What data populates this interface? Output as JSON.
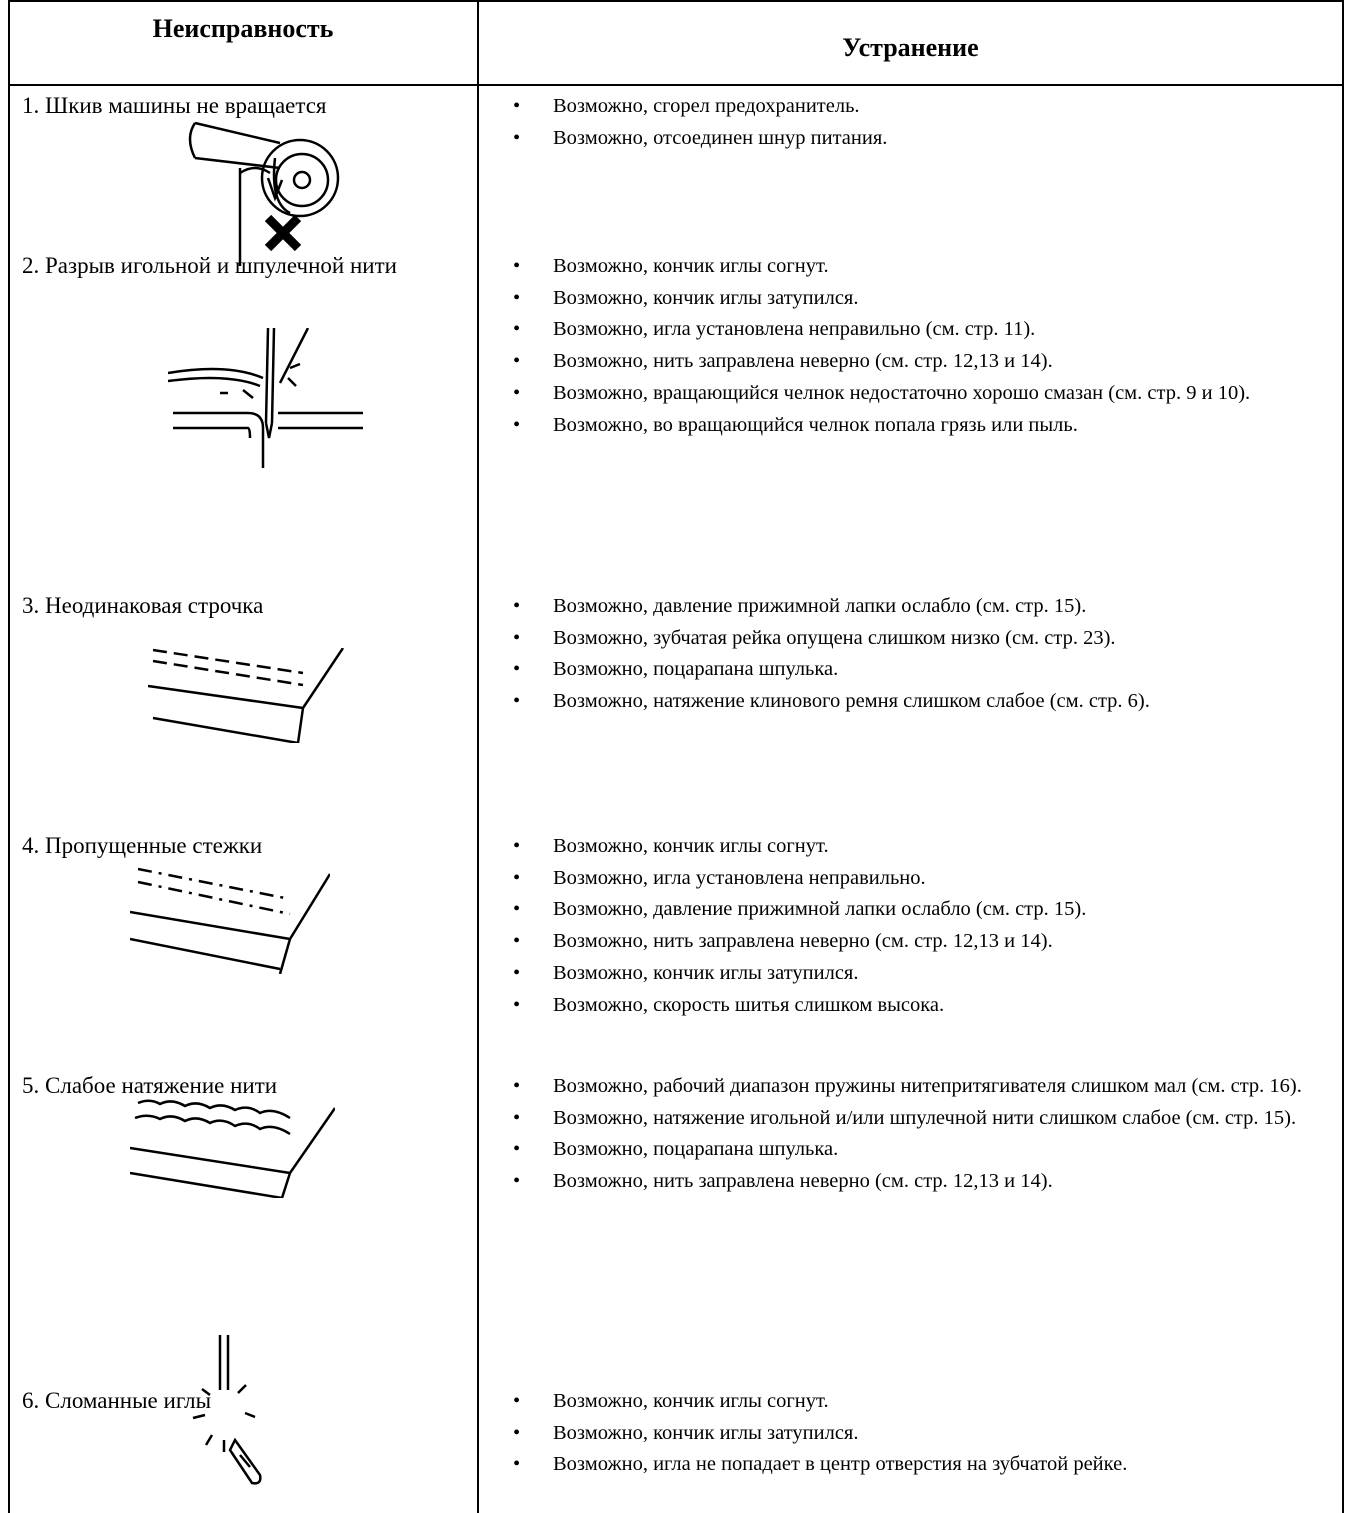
{
  "table": {
    "header": [
      "Неисправность",
      "Устранение"
    ],
    "rows": [
      {
        "problem": "1. Шкив машины не вращается",
        "remedies": [
          "Возможно, сгорел предохранитель.",
          "Возможно, отсоединен шнур питания."
        ]
      },
      {
        "problem": "2. Разрыв игольной и шпулечной нити",
        "remedies": [
          "Возможно, кончик иглы согнут.",
          "Возможно, кончик иглы затупился.",
          "Возможно, игла установлена неправильно (см. стр. 11).",
          "Возможно, нить заправлена неверно (см. стр. 12,13 и 14).",
          "Возможно, вращающийся челнок недостаточно хорошо смазан (см. стр. 9 и 10).",
          "Возможно, во вращающийся челнок попала грязь или пыль."
        ]
      },
      {
        "problem": "3. Неодинаковая строчка",
        "remedies": [
          "Возможно, давление прижимной лапки ослабло (см. стр. 15).",
          "Возможно, зубчатая рейка опущена слишком низко (см. стр. 23).",
          "Возможно, поцарапана шпулька.",
          "Возможно, натяжение клинового ремня слишком слабое (см. стр. 6)."
        ]
      },
      {
        "problem": "4. Пропущенные стежки",
        "remedies": [
          "Возможно, кончик иглы согнут.",
          "Возможно, игла установлена неправильно.",
          "Возможно, давление прижимной лапки ослабло (см. стр. 15).",
          "Возможно, нить заправлена неверно (см. стр. 12,13 и 14).",
          "Возможно, кончик иглы затупился.",
          "Возможно, скорость шитья слишком высока."
        ]
      },
      {
        "problem": "5. Слабое натяжение нити",
        "remedies": [
          "Возможно, рабочий диапазон пружины нитепритягивателя слишком мал (см. стр. 16).",
          "Возможно, натяжение игольной и/или шпулечной нити слишком слабое (см. стр. 15).",
          "Возможно, поцарапана шпулька.",
          "Возможно, нить заправлена неверно (см. стр. 12,13 и 14)."
        ]
      },
      {
        "problem": "6. Сломанные иглы",
        "remedies": [
          "Возможно, кончик иглы согнут.",
          "Возможно, кончик иглы затупился.",
          "Возможно, игла не попадает в центр отверстия на зубчатой рейке."
        ]
      }
    ]
  }
}
